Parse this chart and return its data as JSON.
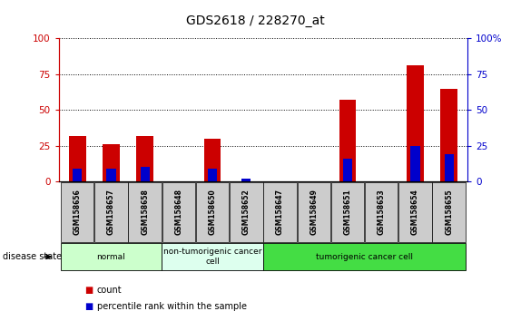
{
  "title": "GDS2618 / 228270_at",
  "samples": [
    "GSM158656",
    "GSM158657",
    "GSM158658",
    "GSM158648",
    "GSM158650",
    "GSM158652",
    "GSM158647",
    "GSM158649",
    "GSM158651",
    "GSM158653",
    "GSM158654",
    "GSM158655"
  ],
  "count_values": [
    32,
    26,
    32,
    0,
    30,
    0,
    0,
    0,
    57,
    0,
    81,
    65
  ],
  "percentile_values": [
    9,
    9,
    10,
    0,
    9,
    2,
    0,
    0,
    16,
    0,
    25,
    19
  ],
  "groups": [
    {
      "label": "normal",
      "start": 0,
      "end": 3,
      "color": "#ccffcc"
    },
    {
      "label": "non-tumorigenic cancer\ncell",
      "start": 3,
      "end": 6,
      "color": "#ddffee"
    },
    {
      "label": "tumorigenic cancer cell",
      "start": 6,
      "end": 12,
      "color": "#44dd44"
    }
  ],
  "bar_color_count": "#cc0000",
  "bar_color_percentile": "#0000cc",
  "ylim": [
    0,
    100
  ],
  "yticks": [
    0,
    25,
    50,
    75,
    100
  ],
  "ytick_labels_left": [
    "0",
    "25",
    "50",
    "75",
    "100"
  ],
  "ytick_labels_right": [
    "0",
    "25",
    "50",
    "75",
    "100%"
  ],
  "disease_state_label": "disease state",
  "legend_count": "count",
  "legend_percentile": "percentile rank within the sample",
  "sample_label_color": "#cccccc",
  "bar_width": 0.5
}
